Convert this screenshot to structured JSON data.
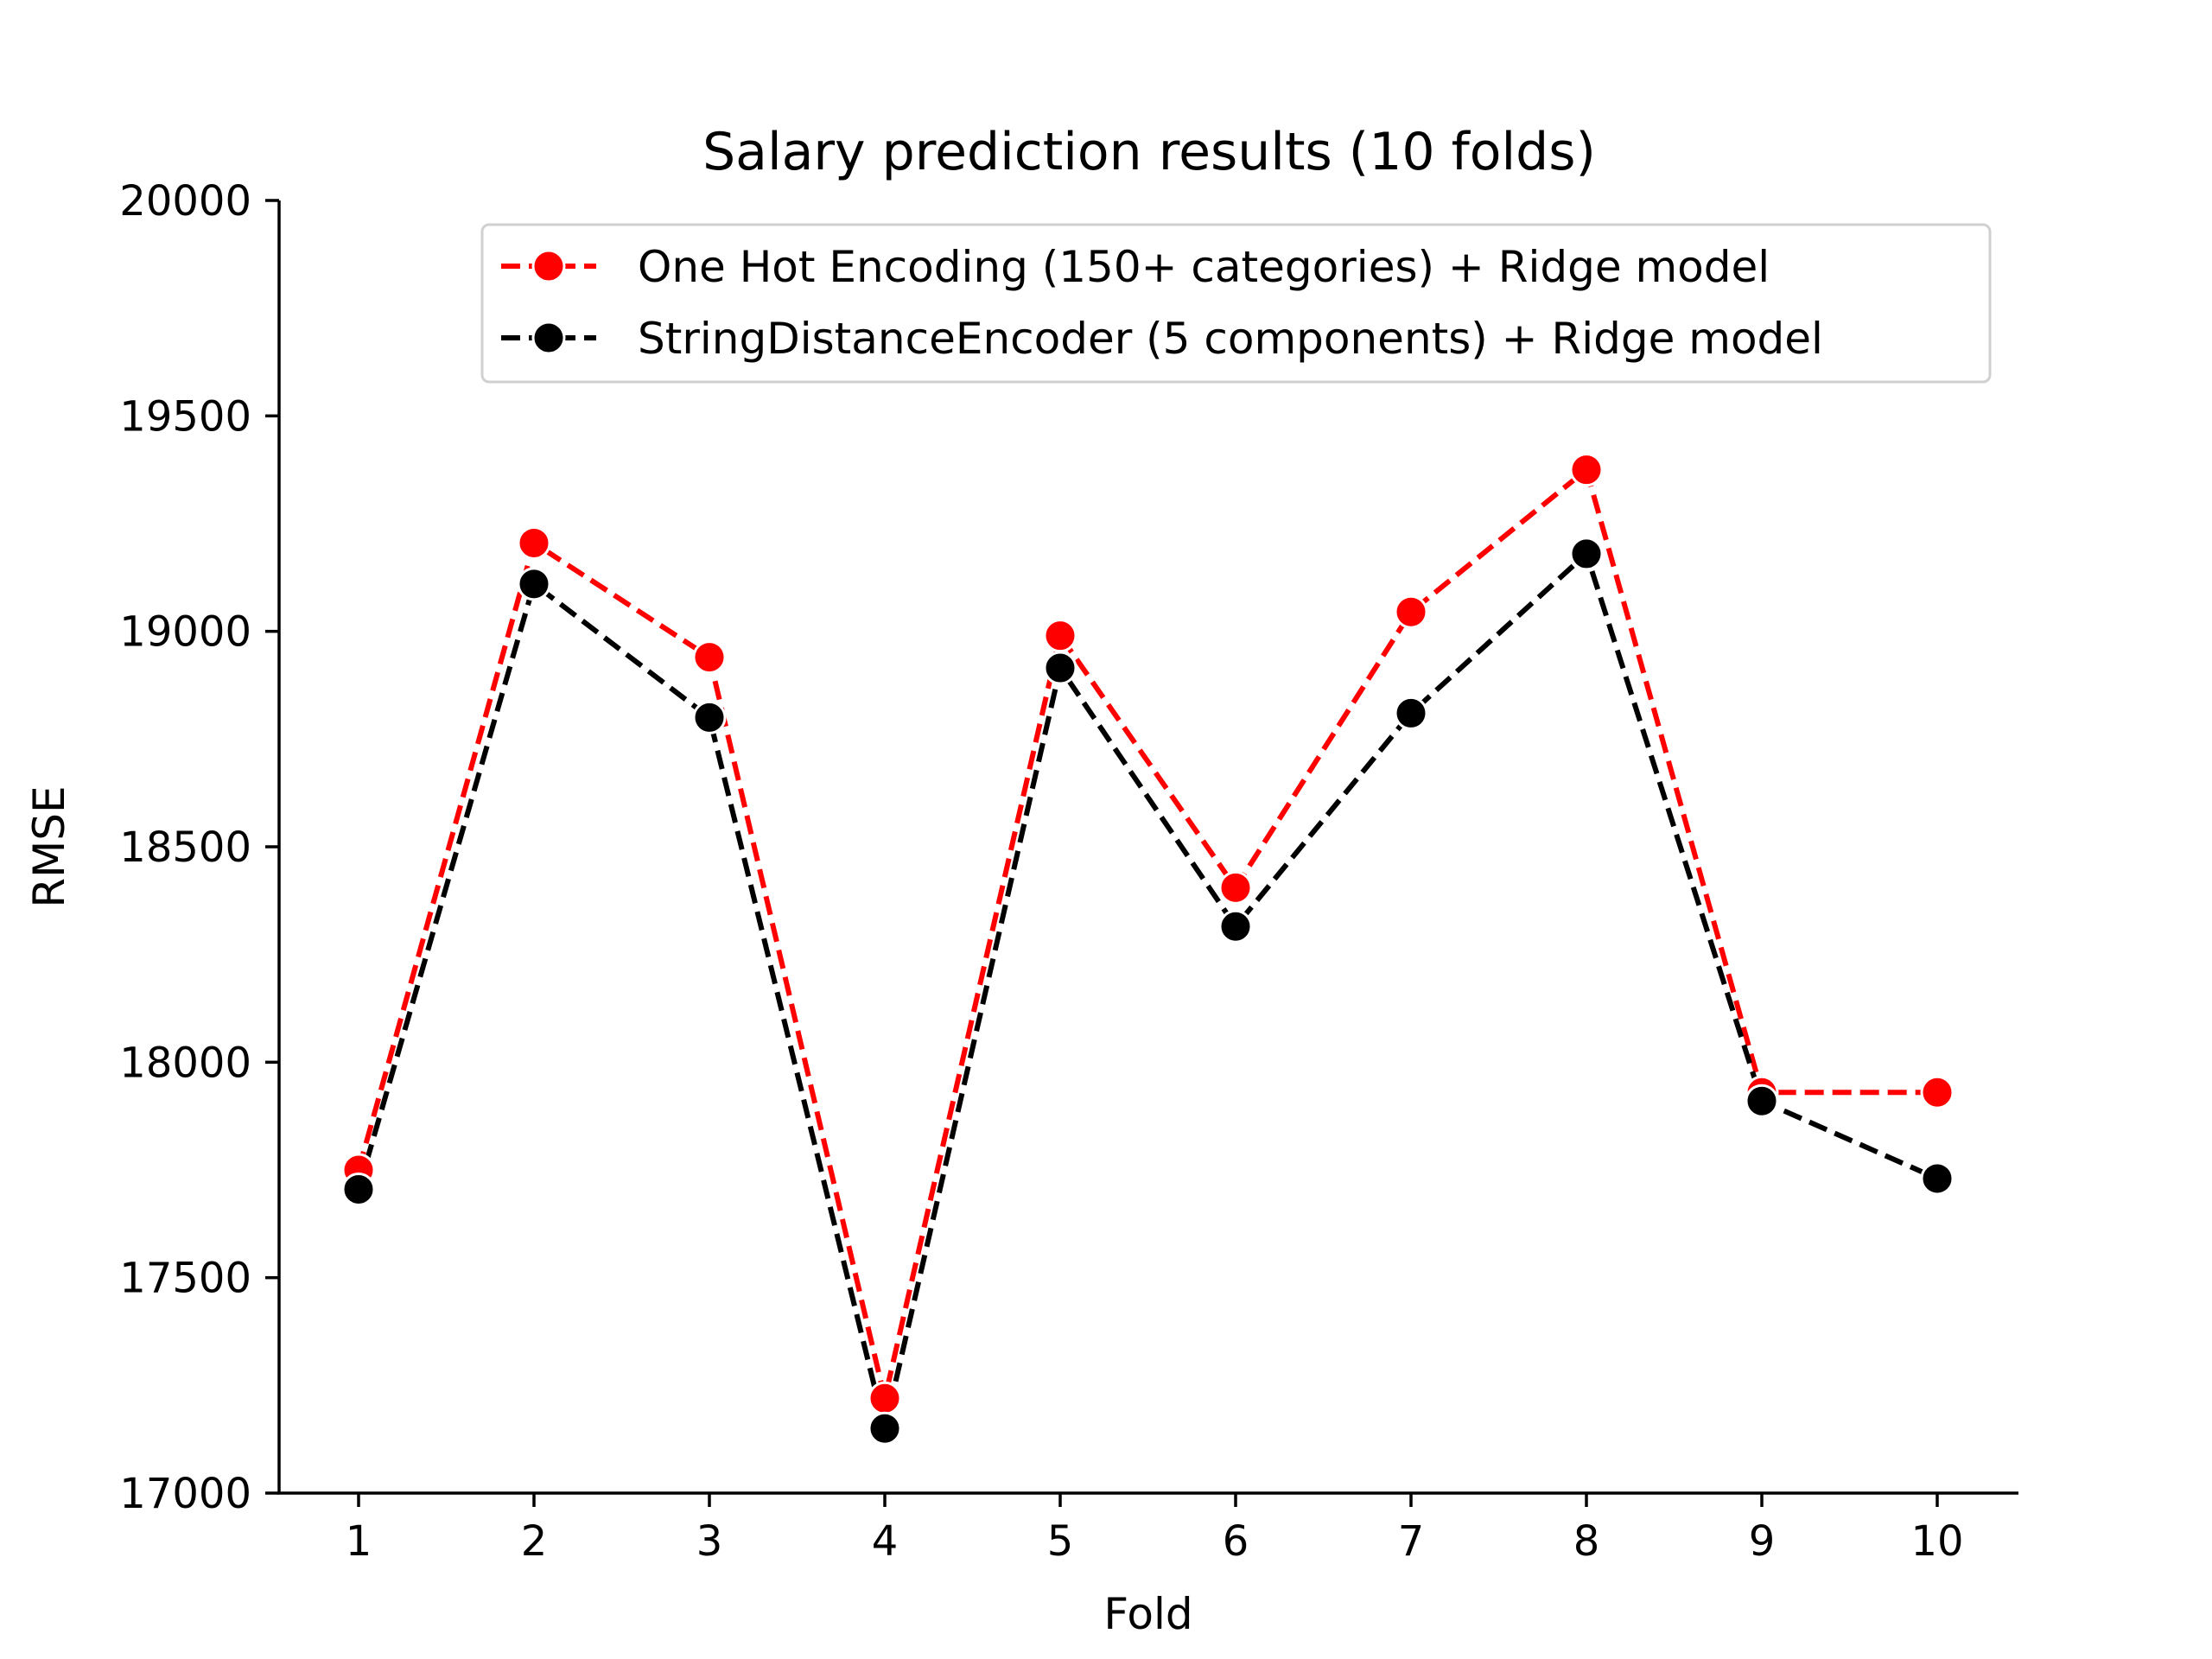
{
  "chart_data": {
    "type": "line",
    "title": "Salary prediction results (10 folds)",
    "xlabel": "Fold",
    "ylabel": "RMSE",
    "x": [
      1,
      2,
      3,
      4,
      5,
      6,
      7,
      8,
      9,
      10
    ],
    "xticks": [
      "1",
      "2",
      "3",
      "4",
      "5",
      "6",
      "7",
      "8",
      "9",
      "10"
    ],
    "ylim": [
      17000,
      20000
    ],
    "yticks": [
      "17000",
      "17500",
      "18000",
      "18500",
      "19000",
      "19500",
      "20000"
    ],
    "grid": false,
    "legend_position": "top-right",
    "series": [
      {
        "name": "One Hot Encoding (150+ categories) + Ridge model",
        "color": "#ff0000",
        "line_style": "dashed",
        "marker": "circle",
        "values": [
          17750,
          19205,
          18940,
          17220,
          18990,
          18405,
          19045,
          19375,
          17930,
          17930
        ]
      },
      {
        "name": "StringDistanceEncoder (5 components) + Ridge model",
        "color": "#000000",
        "line_style": "dashed",
        "marker": "circle",
        "values": [
          17705,
          19110,
          18800,
          17150,
          18915,
          18315,
          18810,
          19180,
          17910,
          17730
        ]
      }
    ]
  }
}
